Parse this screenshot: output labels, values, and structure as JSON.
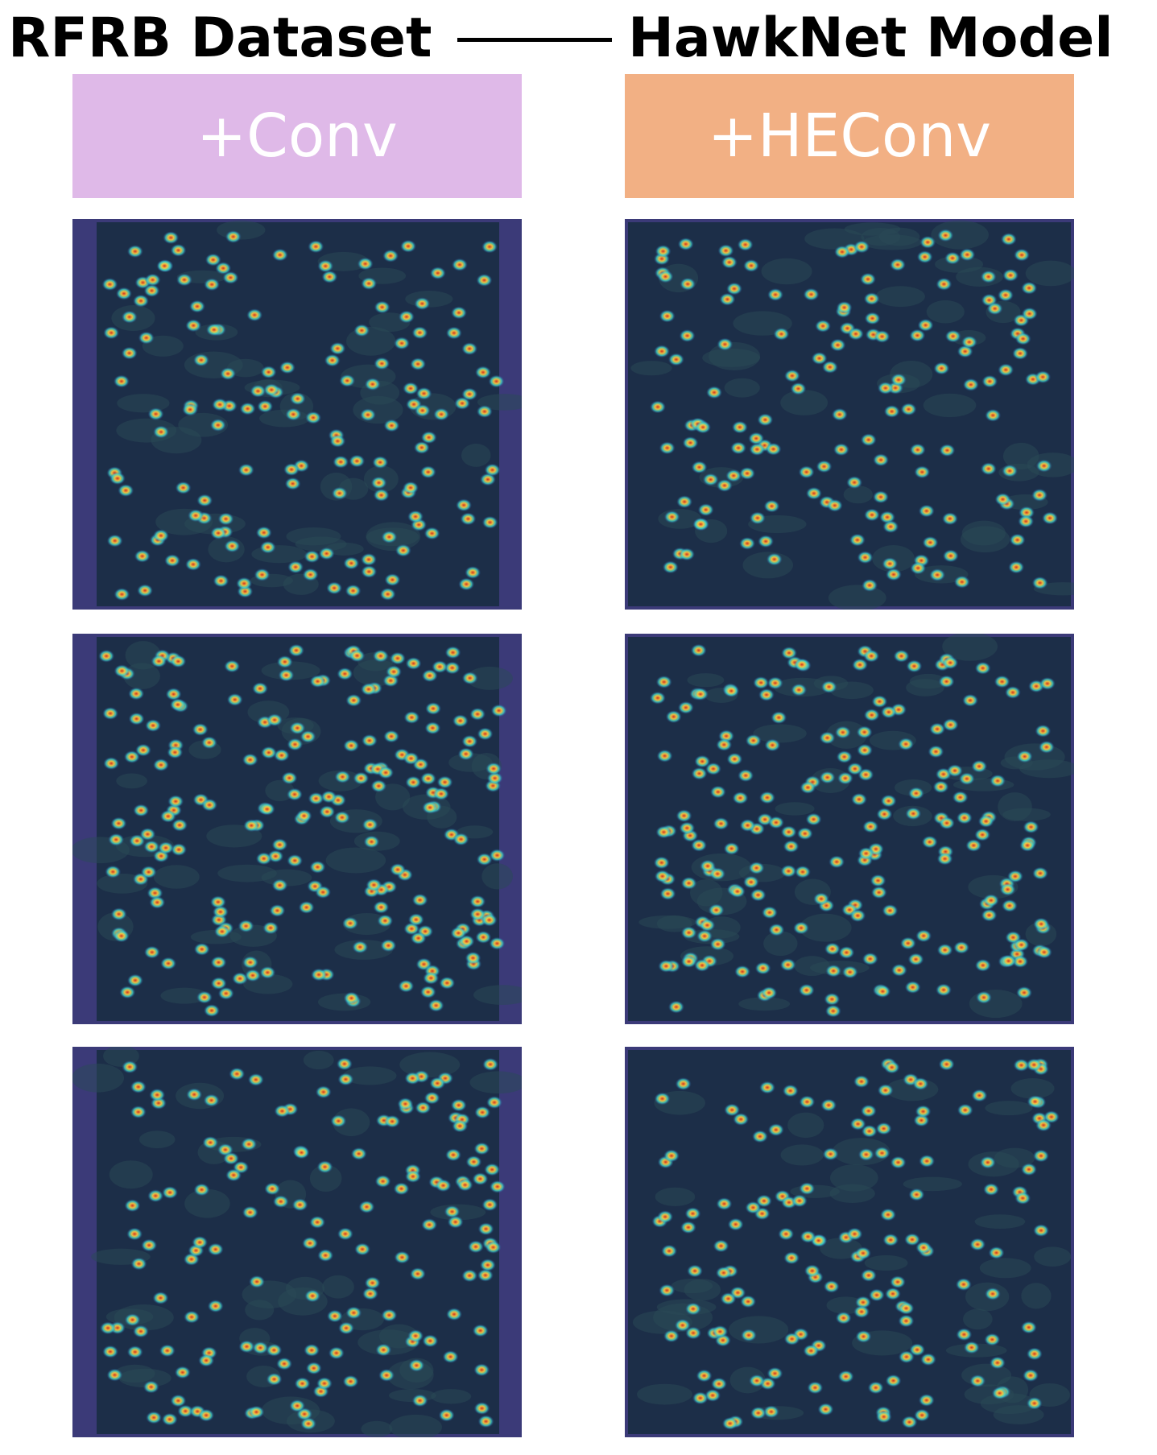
{
  "header": {
    "left_title": "RFRB Dataset",
    "right_title": "HawkNet Model"
  },
  "columns": [
    {
      "label": "+Conv"
    },
    {
      "label": "+HEConv"
    }
  ]
}
